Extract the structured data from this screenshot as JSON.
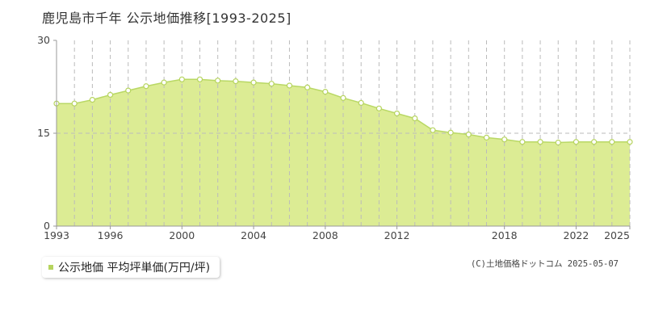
{
  "header": {
    "title": "鹿児島市千年 公示地価推移[1993-2025]"
  },
  "legend": {
    "label": "公示地価 平均坪単価(万円/坪)"
  },
  "credit": {
    "text": "(C)土地価格ドットコム 2025-05-07"
  },
  "colors": {
    "fill": "#dcec94",
    "line": "#b9d865",
    "marker_stroke": "#b6d45e",
    "grid": "#bbbbbb",
    "legend_swatch": "#b6d45e"
  },
  "chart_data": {
    "type": "area",
    "title": "鹿児島市千年 公示地価推移[1993-2025]",
    "xlabel": "",
    "ylabel": "",
    "series": [
      {
        "name": "公示地価 平均坪単価(万円/坪)",
        "x": [
          1993,
          1994,
          1995,
          1996,
          1997,
          1998,
          1999,
          2000,
          2001,
          2002,
          2003,
          2004,
          2005,
          2006,
          2007,
          2008,
          2009,
          2010,
          2011,
          2012,
          2013,
          2014,
          2015,
          2016,
          2017,
          2018,
          2019,
          2020,
          2021,
          2022,
          2023,
          2024,
          2025
        ],
        "values": [
          19.8,
          19.8,
          20.4,
          21.2,
          21.9,
          22.6,
          23.2,
          23.7,
          23.7,
          23.5,
          23.4,
          23.2,
          23.0,
          22.7,
          22.4,
          21.7,
          20.7,
          19.9,
          19.0,
          18.2,
          17.4,
          15.5,
          15.1,
          14.8,
          14.3,
          14.0,
          13.6,
          13.6,
          13.5,
          13.6,
          13.6,
          13.6,
          13.6
        ]
      }
    ],
    "xlim": [
      1993,
      2025
    ],
    "ylim": [
      0,
      30
    ],
    "y_ticks": [
      0,
      15,
      30
    ],
    "x_tick_labels": [
      1993,
      1996,
      2000,
      2004,
      2008,
      2012,
      2018,
      2022,
      2025
    ],
    "grid": "vertical dashed per year, horizontal dashed at 15",
    "legend_position": "bottom-left"
  }
}
